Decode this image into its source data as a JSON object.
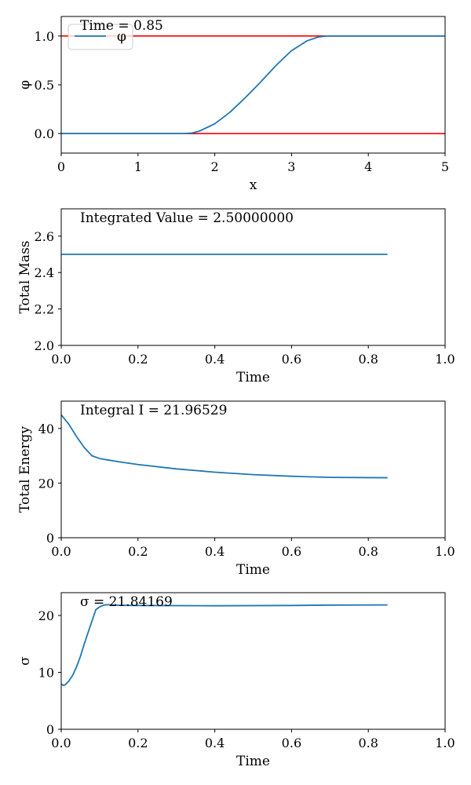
{
  "colors": {
    "line": "#1f77b4",
    "bound": "#ff0000",
    "axis": "#000000"
  },
  "chart_data": [
    {
      "id": "phi",
      "type": "line",
      "annotation": "Time = 0.85",
      "xlabel": "x",
      "ylabel": "φ",
      "xlim": [
        0,
        5
      ],
      "ylim": [
        -0.2,
        1.2
      ],
      "xticks": [
        0,
        1,
        2,
        3,
        4,
        5
      ],
      "xtick_labels": [
        "0",
        "1",
        "2",
        "3",
        "4",
        "5"
      ],
      "yticks": [
        0.0,
        0.5,
        1.0
      ],
      "ytick_labels": [
        "0.0",
        "0.5",
        "1.0"
      ],
      "legend": {
        "label": "φ",
        "position": "upper-left"
      },
      "hlines": [
        {
          "y": 0.0,
          "color": "#ff0000"
        },
        {
          "y": 1.0,
          "color": "#ff0000"
        }
      ],
      "series": [
        {
          "name": "φ",
          "x": [
            0,
            1.0,
            1.6,
            1.7,
            1.8,
            2.0,
            2.2,
            2.4,
            2.5,
            2.6,
            2.8,
            3.0,
            3.2,
            3.35,
            3.45,
            4.0,
            5.0
          ],
          "y": [
            0.0,
            0.0,
            0.0,
            0.005,
            0.025,
            0.1,
            0.22,
            0.37,
            0.45,
            0.53,
            0.7,
            0.85,
            0.95,
            0.99,
            1.0,
            1.0,
            1.0
          ]
        }
      ]
    },
    {
      "id": "mass",
      "type": "line",
      "annotation": "Integrated Value = 2.50000000",
      "xlabel": "Time",
      "ylabel": "Total Mass",
      "xlim": [
        0,
        1.0
      ],
      "ylim": [
        2.0,
        2.75
      ],
      "xticks": [
        0,
        0.2,
        0.4,
        0.6,
        0.8,
        1.0
      ],
      "xtick_labels": [
        "0.0",
        "0.2",
        "0.4",
        "0.6",
        "0.8",
        "1.0"
      ],
      "yticks": [
        2.0,
        2.2,
        2.4,
        2.6
      ],
      "ytick_labels": [
        "2.0",
        "2.2",
        "2.4",
        "2.6"
      ],
      "series": [
        {
          "x": [
            0,
            0.85
          ],
          "y": [
            2.5,
            2.5
          ]
        }
      ]
    },
    {
      "id": "energy",
      "type": "line",
      "annotation": "Integral I = 21.96529",
      "xlabel": "Time",
      "ylabel": "Total Energy",
      "xlim": [
        0,
        1.0
      ],
      "ylim": [
        0,
        50
      ],
      "xticks": [
        0,
        0.2,
        0.4,
        0.6,
        0.8,
        1.0
      ],
      "xtick_labels": [
        "0.0",
        "0.2",
        "0.4",
        "0.6",
        "0.8",
        "1.0"
      ],
      "yticks": [
        0,
        20,
        40
      ],
      "ytick_labels": [
        "0",
        "20",
        "40"
      ],
      "series": [
        {
          "x": [
            0,
            0.02,
            0.04,
            0.06,
            0.08,
            0.1,
            0.12,
            0.15,
            0.2,
            0.3,
            0.4,
            0.5,
            0.6,
            0.7,
            0.8,
            0.85
          ],
          "y": [
            45,
            41.5,
            37,
            33,
            30,
            29,
            28.5,
            27.8,
            26.8,
            25.2,
            24,
            23.1,
            22.5,
            22.1,
            22.0,
            21.97
          ]
        }
      ]
    },
    {
      "id": "sigma",
      "type": "line",
      "annotation": "σ = 21.84169",
      "xlabel": "Time",
      "ylabel": "σ",
      "xlim": [
        0,
        1.0
      ],
      "ylim": [
        0,
        24
      ],
      "xticks": [
        0,
        0.2,
        0.4,
        0.6,
        0.8,
        1.0
      ],
      "xtick_labels": [
        "0.0",
        "0.2",
        "0.4",
        "0.6",
        "0.8",
        "1.0"
      ],
      "yticks": [
        0,
        10,
        20
      ],
      "ytick_labels": [
        "0",
        "10",
        "20"
      ],
      "series": [
        {
          "x": [
            0,
            0.005,
            0.01,
            0.02,
            0.03,
            0.04,
            0.05,
            0.06,
            0.07,
            0.08,
            0.09,
            0.1,
            0.11,
            0.12,
            0.14,
            0.2,
            0.4,
            0.6,
            0.7,
            0.85
          ],
          "y": [
            8,
            7.7,
            7.8,
            8.5,
            9.5,
            11,
            12.8,
            15,
            17,
            19,
            21,
            21.5,
            21.8,
            21.9,
            21.8,
            21.75,
            21.7,
            21.75,
            21.82,
            21.84
          ]
        }
      ]
    }
  ]
}
